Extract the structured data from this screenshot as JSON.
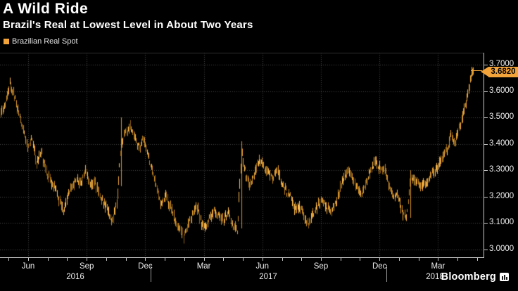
{
  "header": {
    "title": "A Wild Ride",
    "subtitle": "Brazil's Real at Lowest Level in About Two Years"
  },
  "legend": {
    "label": "Brazilian Real Spot",
    "swatch_color": "#F2A33A"
  },
  "branding": {
    "name": "Bloomberg"
  },
  "chart_data": {
    "type": "line",
    "style": "ohlc-intraday-bars",
    "title": "A Wild Ride",
    "subtitle": "Brazil's Real at Lowest Level in About Two Years",
    "series_name": "Brazilian Real Spot",
    "series_color": "#E09A2E",
    "axis_color": "#C8C8C8",
    "grid": "dotted",
    "legend_position": "top-left",
    "sampling": "weekly closes (read from chart)",
    "start_date": "2016-05-06",
    "end_date": "2018-05-18",
    "values": [
      3.51,
      3.56,
      3.63,
      3.58,
      3.51,
      3.45,
      3.39,
      3.42,
      3.33,
      3.37,
      3.3,
      3.26,
      3.24,
      3.19,
      3.15,
      3.2,
      3.24,
      3.27,
      3.25,
      3.31,
      3.24,
      3.26,
      3.21,
      3.18,
      3.15,
      3.11,
      3.17,
      3.4,
      3.44,
      3.47,
      3.43,
      3.39,
      3.42,
      3.36,
      3.29,
      3.23,
      3.17,
      3.21,
      3.16,
      3.12,
      3.08,
      3.05,
      3.1,
      3.13,
      3.16,
      3.1,
      3.08,
      3.12,
      3.15,
      3.13,
      3.11,
      3.14,
      3.09,
      3.07,
      3.37,
      3.28,
      3.24,
      3.29,
      3.34,
      3.31,
      3.29,
      3.27,
      3.31,
      3.26,
      3.22,
      3.2,
      3.15,
      3.17,
      3.13,
      3.09,
      3.13,
      3.16,
      3.19,
      3.16,
      3.14,
      3.17,
      3.22,
      3.27,
      3.3,
      3.27,
      3.24,
      3.21,
      3.26,
      3.3,
      3.33,
      3.31,
      3.31,
      3.25,
      3.2,
      3.22,
      3.14,
      3.12,
      3.27,
      3.26,
      3.24,
      3.25,
      3.27,
      3.29,
      3.31,
      3.34,
      3.37,
      3.43,
      3.41,
      3.47,
      3.53,
      3.6,
      3.682
    ],
    "event_spikes": [
      {
        "index": 27,
        "low": 3.24,
        "high": 3.5
      },
      {
        "index": 54,
        "low": 3.08,
        "high": 3.41
      },
      {
        "index": 92,
        "low": 3.12,
        "high": 3.3
      }
    ],
    "last_price": 3.682,
    "last_price_label": "3.6820",
    "ylim": [
      3.0,
      3.7426
    ],
    "y_axis": {
      "tick_labels": [
        "3.7000",
        "3.6000",
        "3.5000",
        "3.4000",
        "3.3000",
        "3.2000",
        "3.1000",
        "3.0000"
      ]
    },
    "x_axis": {
      "quarter_tick_labels": [
        "Jun",
        "Sep",
        "Dec",
        "Mar",
        "Jun",
        "Sep",
        "Dec",
        "Mar"
      ],
      "year_labels": [
        "2016",
        "2017",
        "2018"
      ]
    }
  }
}
